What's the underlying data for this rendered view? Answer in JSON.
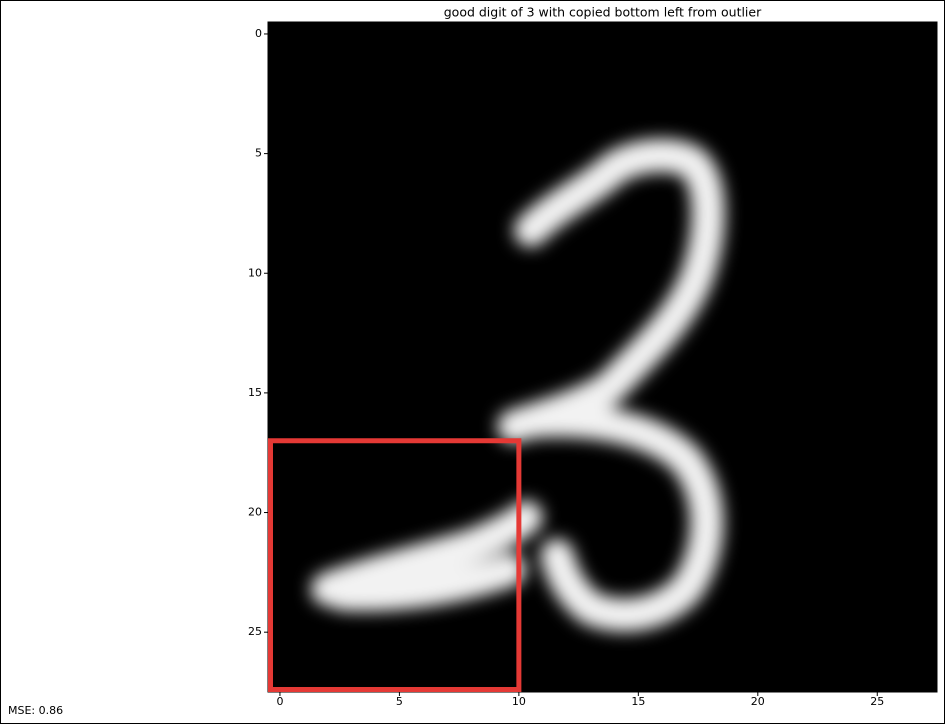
{
  "chart_data": {
    "type": "image",
    "title": "good digit of 3 with copied bottom left from outlier",
    "xlim": [
      -0.5,
      27.5
    ],
    "ylim": [
      27.5,
      -0.5
    ],
    "xticks": [
      0,
      5,
      10,
      15,
      20,
      25
    ],
    "yticks": [
      0,
      5,
      10,
      15,
      20,
      25
    ],
    "highlight": {
      "x0": -0.5,
      "x1": 10,
      "y0": 17,
      "y1": 27.5,
      "color": "#e53935"
    }
  },
  "footer": "MSE: 0.86"
}
